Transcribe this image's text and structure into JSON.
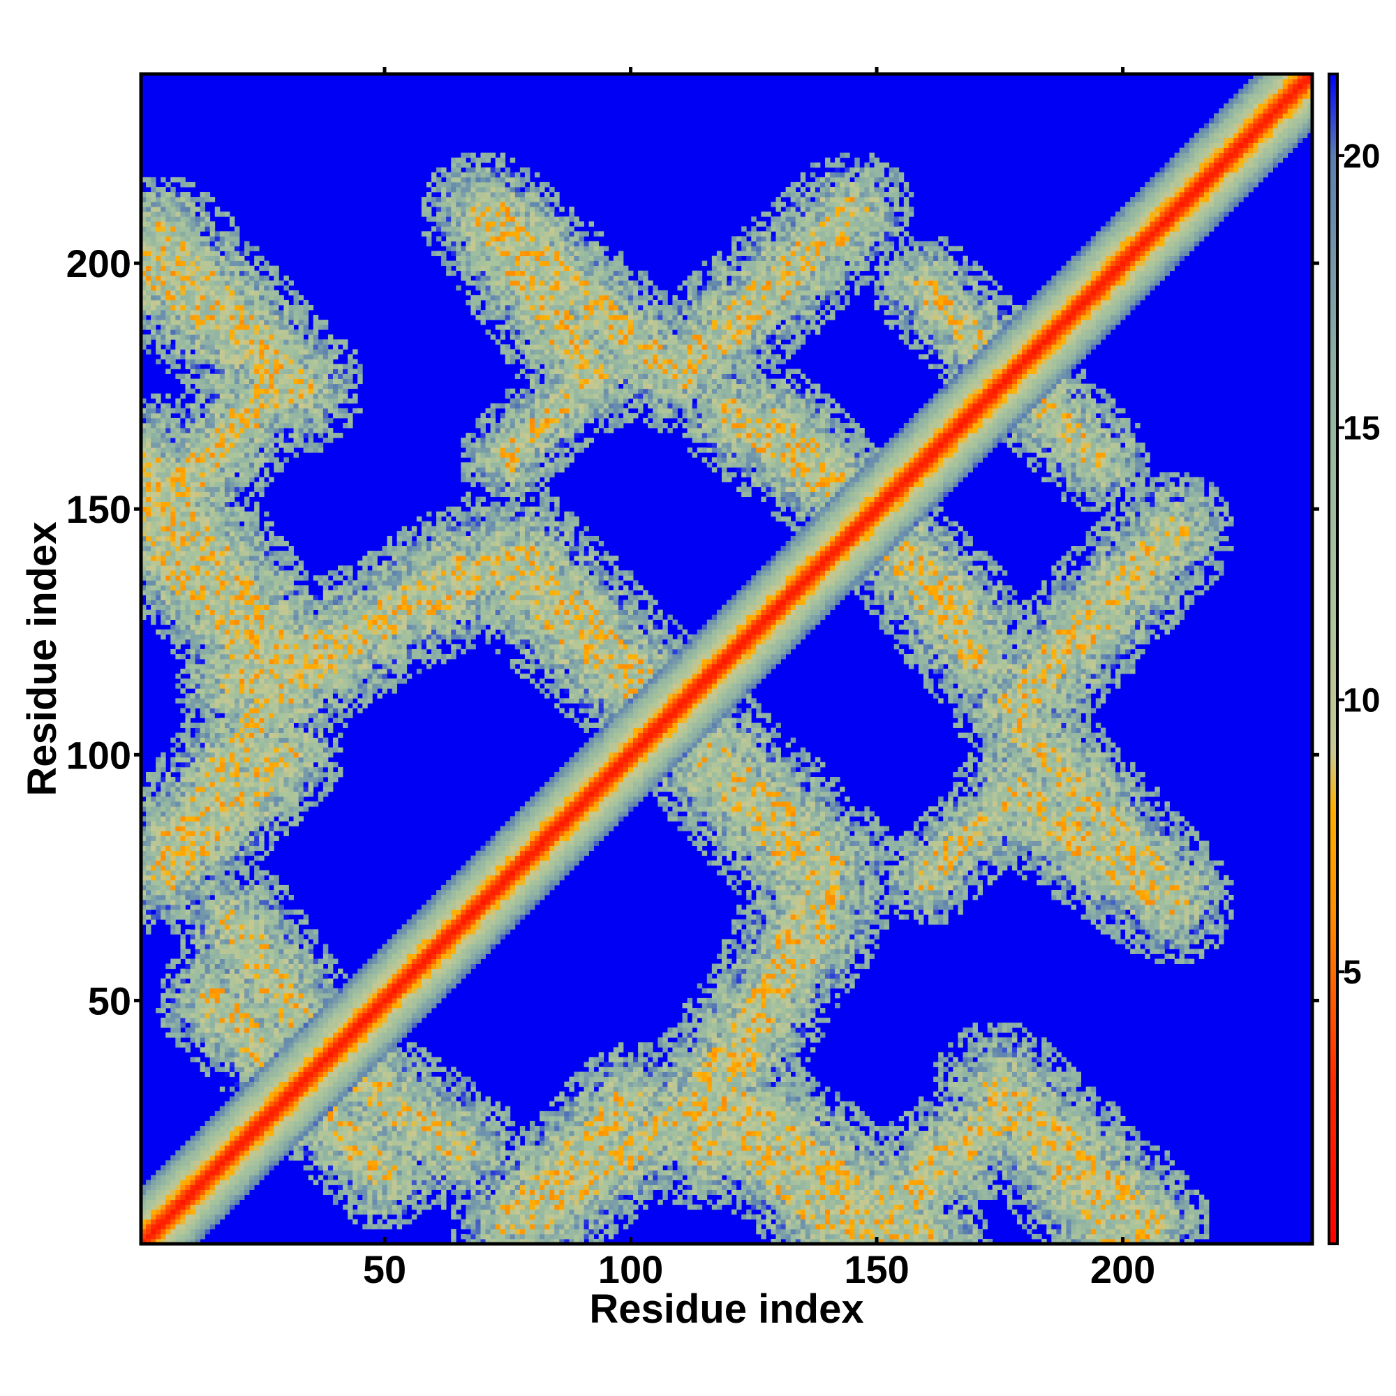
{
  "chart_data": {
    "type": "heatmap",
    "title": "",
    "xlabel": "Residue index",
    "ylabel": "Residue index",
    "n_residues": 238,
    "xlim": [
      1,
      238
    ],
    "ylim": [
      1,
      238
    ],
    "x_ticks": [
      50,
      100,
      150,
      200
    ],
    "y_ticks": [
      50,
      100,
      150,
      200
    ],
    "colorbar": {
      "min": 0,
      "max": 21.5,
      "ticks": [
        5,
        10,
        15,
        20
      ],
      "colors": [
        {
          "value": 0,
          "color": "#ff0000"
        },
        {
          "value": 3,
          "color": "#ff2a00"
        },
        {
          "value": 6,
          "color": "#ff8c00"
        },
        {
          "value": 8,
          "color": "#ffb000"
        },
        {
          "value": 9,
          "color": "#c8c890"
        },
        {
          "value": 12,
          "color": "#a9c49c"
        },
        {
          "value": 16,
          "color": "#8fb2a4"
        },
        {
          "value": 20,
          "color": "#5a7fb0"
        },
        {
          "value": 21.5,
          "color": "#0000ff"
        }
      ],
      "background_color": "#0000f5"
    },
    "contact_bands": [
      {
        "from": [
          1,
          200
        ],
        "to": [
          32,
          175
        ],
        "width": 14
      },
      {
        "from": [
          1,
          160
        ],
        "to": [
          32,
          117
        ],
        "width": 14
      },
      {
        "from": [
          1,
          150
        ],
        "to": [
          28,
          112
        ],
        "width": 12
      },
      {
        "from": [
          28,
          112
        ],
        "to": [
          65,
          138
        ],
        "width": 13
      },
      {
        "from": [
          28,
          112
        ],
        "to": [
          5,
          80
        ],
        "width": 12
      },
      {
        "from": [
          35,
          40
        ],
        "to": [
          65,
          20
        ],
        "width": 13
      },
      {
        "from": [
          40,
          25
        ],
        "to": [
          15,
          50
        ],
        "width": 12
      },
      {
        "from": [
          72,
          210
        ],
        "to": [
          105,
          180
        ],
        "width": 12
      },
      {
        "from": [
          72,
          140
        ],
        "to": [
          108,
          108
        ],
        "width": 14
      },
      {
        "from": [
          108,
          108
        ],
        "to": [
          140,
          78
        ],
        "width": 14
      },
      {
        "from": [
          140,
          78
        ],
        "to": [
          115,
          20
        ],
        "width": 13
      },
      {
        "from": [
          115,
          30
        ],
        "to": [
          140,
          5
        ],
        "width": 12
      },
      {
        "from": [
          75,
          5
        ],
        "to": [
          100,
          30
        ],
        "width": 12
      },
      {
        "from": [
          150,
          5
        ],
        "to": [
          178,
          30
        ],
        "width": 13
      },
      {
        "from": [
          178,
          30
        ],
        "to": [
          205,
          5
        ],
        "width": 13
      },
      {
        "from": [
          178,
          92
        ],
        "to": [
          210,
          70
        ],
        "width": 13
      },
      {
        "from": [
          178,
          92
        ],
        "to": [
          160,
          75
        ],
        "width": 10
      },
      {
        "from": [
          178,
          110
        ],
        "to": [
          210,
          145
        ],
        "width": 13
      },
      {
        "from": [
          120,
          170
        ],
        "to": [
          150,
          148
        ],
        "width": 12
      },
      {
        "from": [
          150,
          148
        ],
        "to": [
          168,
          130
        ],
        "width": 11
      },
      {
        "from": [
          120,
          185
        ],
        "to": [
          145,
          210
        ],
        "width": 11
      },
      {
        "from": [
          160,
          195
        ],
        "to": [
          180,
          175
        ],
        "width": 11
      },
      {
        "from": [
          178,
          175
        ],
        "to": [
          195,
          160
        ],
        "width": 10
      }
    ]
  }
}
